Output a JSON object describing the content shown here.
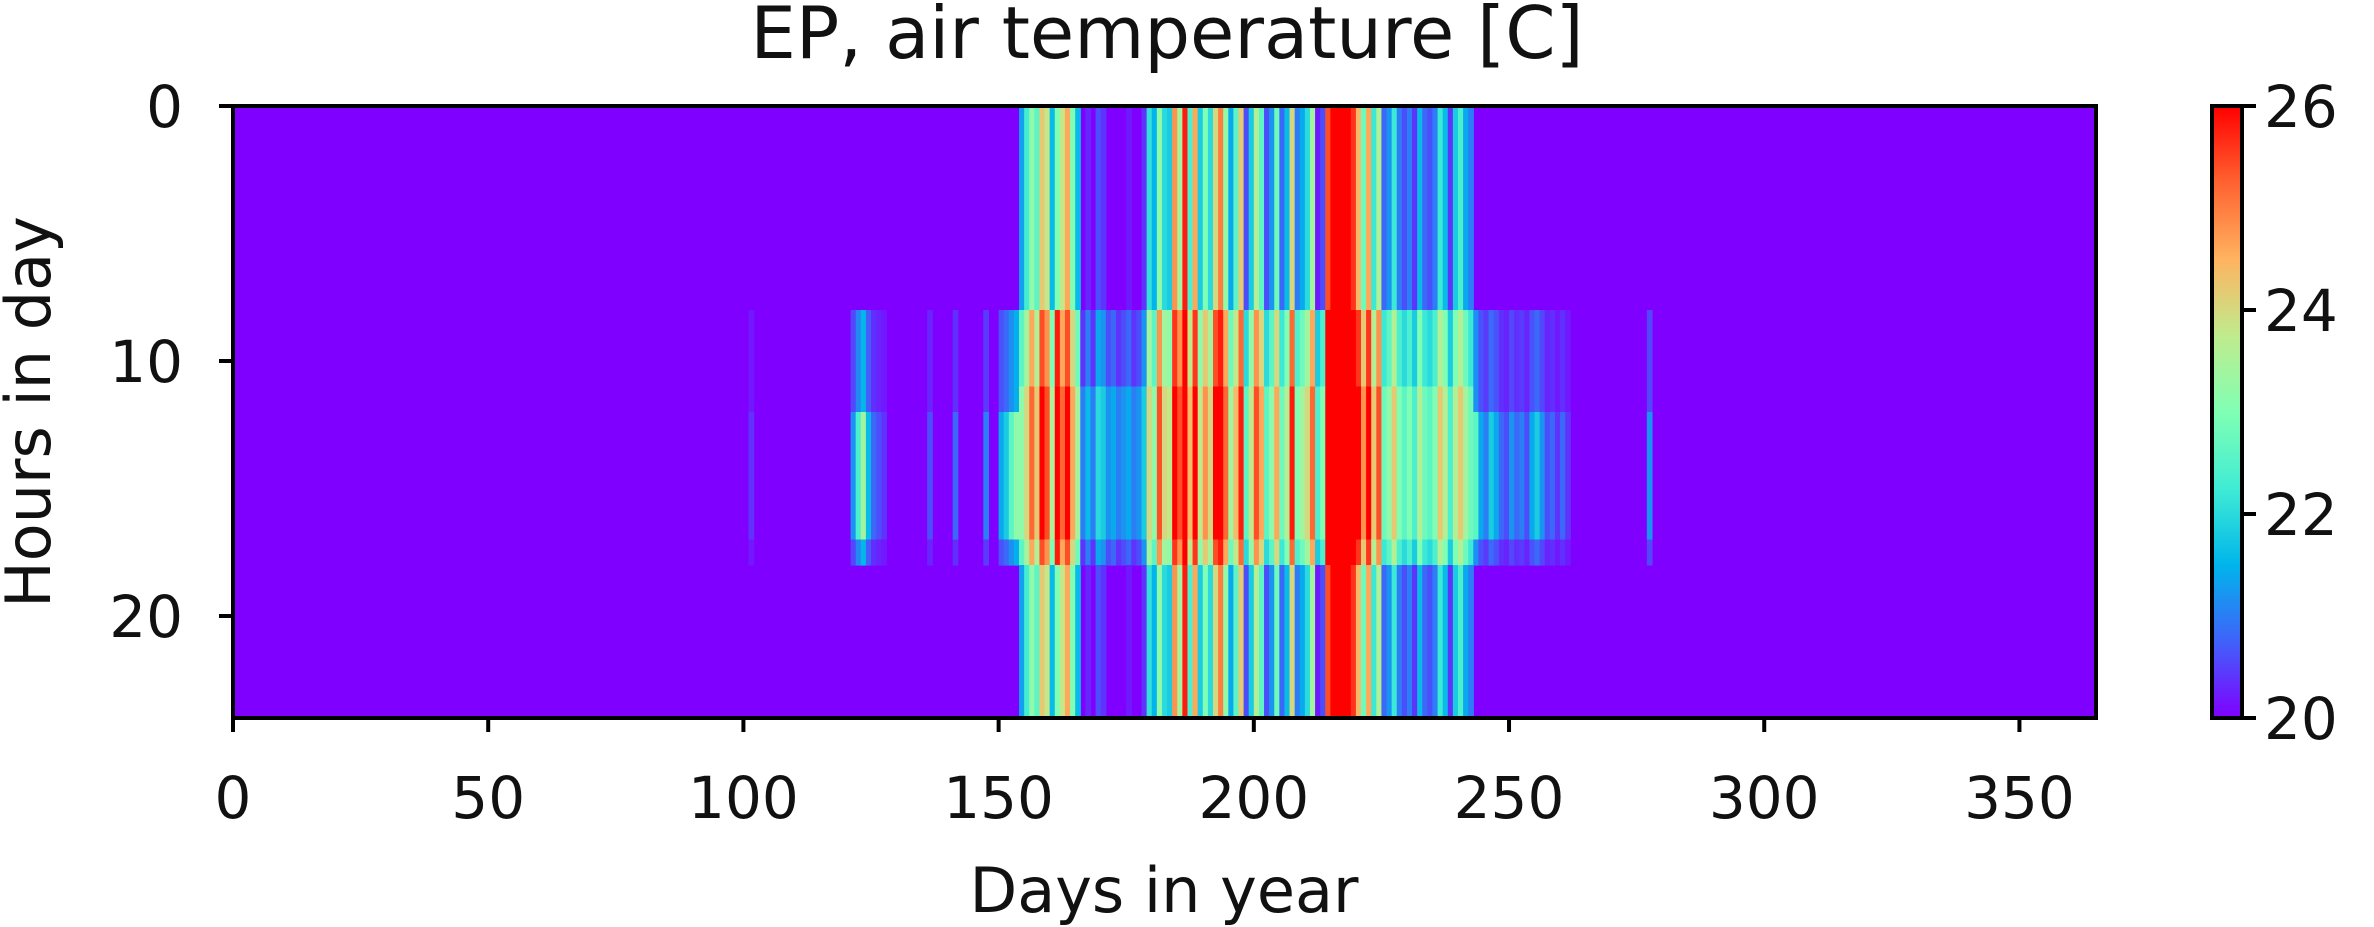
{
  "chart_data": {
    "type": "heatmap",
    "title": "EP, air temperature [C]",
    "xlabel": "Days in year",
    "ylabel": "Hours in day",
    "xlim": [
      0,
      365
    ],
    "ylim": [
      0,
      24
    ],
    "y_axis_inverted": true,
    "xticks": [
      0,
      50,
      100,
      150,
      200,
      250,
      300,
      350
    ],
    "yticks": [
      0,
      10,
      20
    ],
    "colorbar": {
      "min": 20,
      "max": 26,
      "ticks": [
        20,
        22,
        24,
        26
      ],
      "colormap": "rainbow",
      "colors": [
        "#8000ff",
        "#4062fa",
        "#00b5eb",
        "#40ecd4",
        "#80ffb4",
        "#c0eb8d",
        "#ffb360",
        "#ff6230",
        "#ff0000"
      ]
    },
    "hot_period_values": {
      "description": "daily base temperature for each day in the hot season; other days stay at the 20 C minimum",
      "days": [
        154,
        155,
        156,
        157,
        158,
        159,
        160,
        161,
        162,
        163,
        164,
        165,
        166,
        167,
        168,
        169,
        170,
        171,
        172,
        173,
        174,
        175,
        176,
        177,
        178,
        179,
        180,
        181,
        182,
        183,
        184,
        185,
        186,
        187,
        188,
        189,
        190,
        191,
        192,
        193,
        194,
        195,
        196,
        197,
        198,
        199,
        200,
        201,
        202,
        203,
        204,
        205,
        206,
        207,
        208,
        209,
        210,
        211,
        212,
        213,
        214,
        215,
        216,
        217,
        218,
        219,
        220,
        221,
        222,
        223,
        224,
        225,
        226,
        227,
        228,
        229,
        230,
        231,
        232,
        233,
        234,
        235,
        236,
        237,
        238,
        239,
        240,
        241,
        242
      ],
      "night_temp": [
        21.3,
        22.3,
        23.2,
        22.6,
        24.2,
        23.8,
        21.6,
        23.0,
        23.8,
        24.6,
        23.0,
        21.6,
        20.0,
        20.3,
        20.0,
        20.6,
        20.4,
        20.0,
        20.0,
        20.0,
        20.0,
        20.2,
        20.0,
        20.0,
        20.4,
        22.1,
        21.5,
        23.2,
        22.0,
        21.8,
        24.8,
        23.4,
        25.8,
        22.4,
        24.6,
        21.8,
        23.0,
        22.0,
        24.0,
        25.0,
        23.2,
        21.4,
        22.6,
        24.2,
        20.6,
        21.8,
        23.6,
        22.6,
        20.6,
        21.2,
        22.8,
        20.8,
        21.6,
        24.0,
        21.0,
        21.4,
        22.0,
        23.4,
        20.2,
        20.6,
        25.4,
        26.0,
        26.0,
        26.0,
        26.0,
        25.6,
        24.4,
        22.8,
        24.6,
        22.2,
        23.6,
        20.8,
        21.2,
        22.2,
        21.0,
        20.6,
        21.0,
        20.4,
        21.6,
        20.8,
        20.6,
        21.0,
        22.2,
        21.6,
        20.4,
        21.8,
        22.4,
        21.4,
        21.0
      ],
      "day_temp": [
        22.6,
        23.4,
        24.6,
        23.6,
        25.4,
        24.8,
        23.0,
        25.8,
        24.6,
        25.4,
        24.0,
        22.8,
        20.4,
        21.0,
        20.4,
        21.4,
        21.2,
        20.6,
        20.8,
        20.4,
        20.6,
        20.8,
        20.4,
        20.6,
        21.2,
        23.4,
        22.6,
        24.8,
        23.4,
        23.2,
        25.6,
        24.8,
        26.0,
        23.8,
        25.6,
        23.2,
        24.2,
        23.4,
        25.4,
        25.8,
        24.6,
        22.8,
        23.8,
        25.2,
        22.0,
        23.2,
        24.8,
        24.0,
        22.0,
        22.6,
        24.0,
        22.2,
        23.0,
        25.2,
        22.4,
        22.8,
        23.4,
        24.6,
        21.8,
        22.4,
        26.0,
        26.0,
        26.0,
        26.0,
        26.0,
        26.0,
        25.6,
        24.2,
        25.6,
        23.6,
        24.8,
        22.2,
        22.6,
        23.6,
        22.4,
        22.0,
        22.4,
        21.8,
        23.0,
        22.2,
        22.0,
        22.4,
        23.6,
        23.0,
        21.8,
        23.0,
        23.6,
        22.8,
        22.2
      ]
    },
    "shoulder_day_peaks": {
      "description": "isolated warm afternoons outside the hot season",
      "days": [
        101,
        121,
        122,
        123,
        124,
        125,
        126,
        127,
        136,
        141,
        147,
        150,
        151,
        152,
        153,
        243,
        244,
        245,
        246,
        247,
        248,
        249,
        250,
        251,
        252,
        253,
        254,
        255,
        256,
        257,
        258,
        259,
        260,
        261,
        277
      ],
      "peak_temp": [
        20.4,
        21.2,
        22.4,
        23.4,
        21.6,
        20.8,
        20.6,
        20.4,
        20.6,
        20.8,
        21.0,
        21.4,
        21.8,
        22.6,
        23.2,
        22.6,
        21.4,
        21.0,
        21.8,
        21.4,
        20.8,
        20.6,
        21.2,
        20.8,
        21.0,
        20.6,
        21.4,
        21.8,
        21.2,
        20.6,
        20.8,
        20.4,
        20.8,
        20.4,
        21.2
      ]
    }
  }
}
